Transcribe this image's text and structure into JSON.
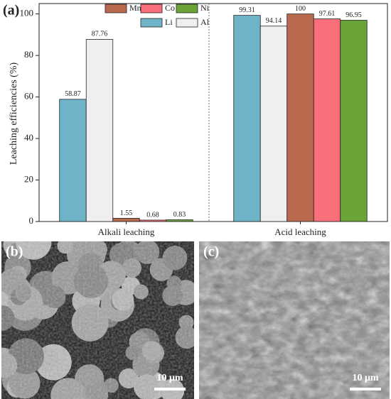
{
  "chart_data": {
    "type": "bar",
    "panel_label": "(a)",
    "y_label": "Leaching efficiencies (%)",
    "categories": [
      "Alkali leaching",
      "Acid leaching"
    ],
    "series": [
      {
        "name": "Li",
        "color": "#6fb3c8",
        "values": [
          58.87,
          99.31
        ]
      },
      {
        "name": "Al",
        "color": "#efefef",
        "values": [
          87.76,
          94.14
        ]
      },
      {
        "name": "Mn",
        "color": "#b8694e",
        "values": [
          1.55,
          100
        ]
      },
      {
        "name": "Co",
        "color": "#f86f7a",
        "values": [
          0.68,
          97.61
        ]
      },
      {
        "name": "Ni",
        "color": "#6aa336",
        "values": [
          0.83,
          96.95
        ]
      }
    ],
    "ylim": [
      0,
      105
    ],
    "yticks": [
      0,
      20,
      40,
      60,
      80,
      100
    ]
  },
  "images": [
    {
      "label": "(b)",
      "scale_bar": "10 μm"
    },
    {
      "label": "(c)",
      "scale_bar": "10 μm"
    }
  ]
}
